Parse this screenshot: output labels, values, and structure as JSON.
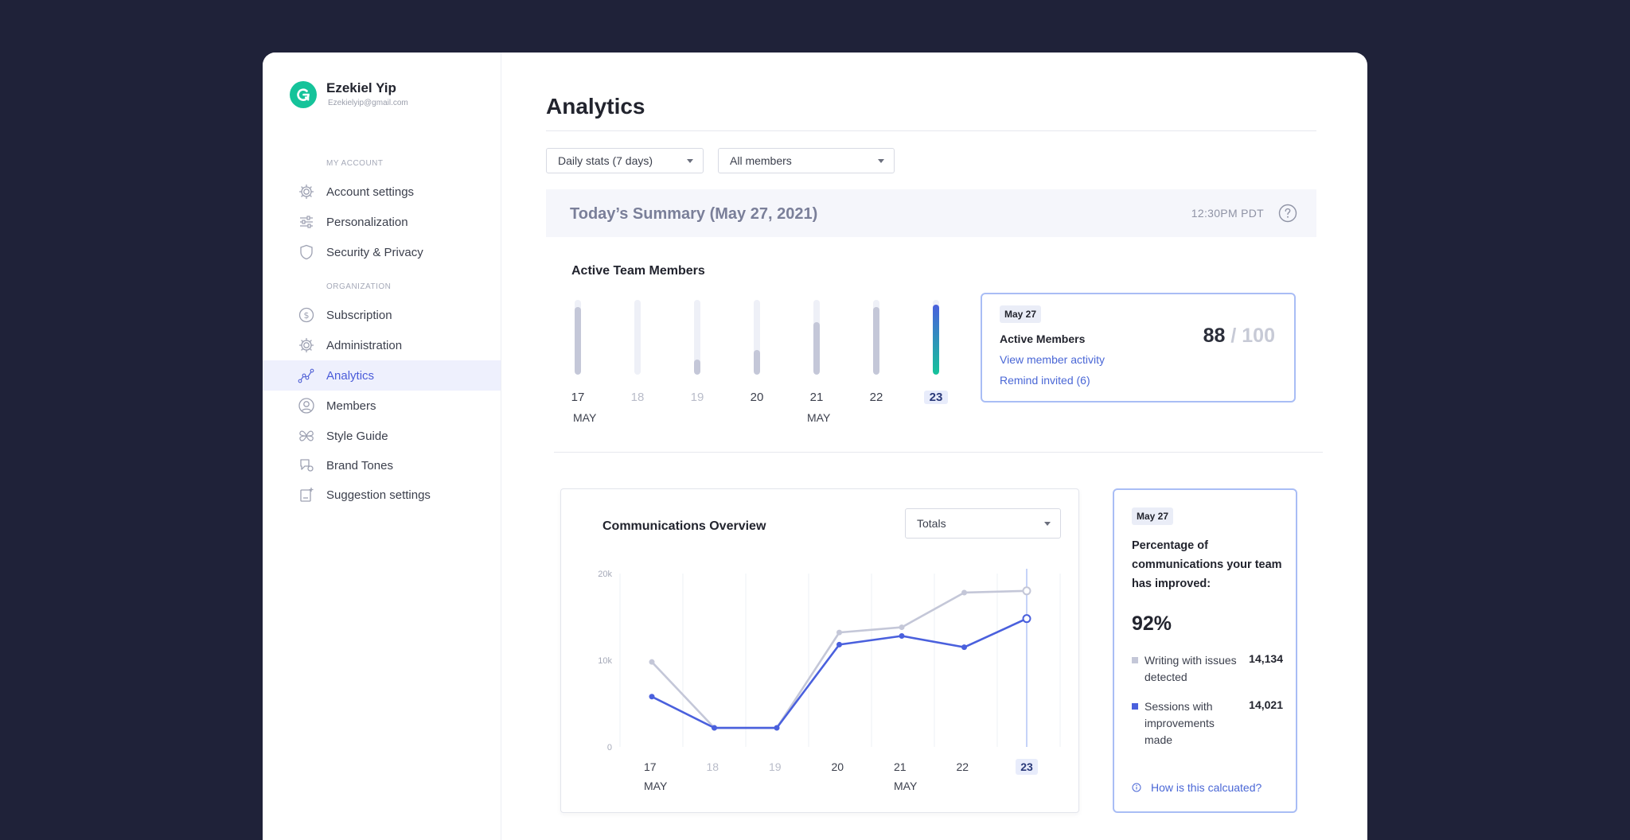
{
  "profile": {
    "name": "Ezekiel Yip",
    "email": "Ezekielyip@gmail.com"
  },
  "sidebar": {
    "section_account": "MY ACCOUNT",
    "section_org": "ORGANIZATION",
    "items": [
      {
        "label": "Account settings",
        "icon": "gear-icon"
      },
      {
        "label": "Personalization",
        "icon": "sliders-icon"
      },
      {
        "label": "Security & Privacy",
        "icon": "shield-icon"
      },
      {
        "label": "Subscription",
        "icon": "dollar-icon"
      },
      {
        "label": "Administration",
        "icon": "gear-icon"
      },
      {
        "label": "Analytics",
        "icon": "analytics-icon",
        "active": true
      },
      {
        "label": "Members",
        "icon": "user-icon"
      },
      {
        "label": "Style Guide",
        "icon": "style-guide-icon"
      },
      {
        "label": "Brand Tones",
        "icon": "brand-tones-icon"
      },
      {
        "label": "Suggestion settings",
        "icon": "suggestion-icon"
      }
    ]
  },
  "main": {
    "title": "Analytics",
    "filter_period": "Daily stats (7 days)",
    "filter_members": "All members",
    "summary_title": "Today’s Summary (May 27, 2021)",
    "summary_time": "12:30PM PDT",
    "active_members": {
      "title": "Active Team Members",
      "days": [
        "17",
        "18",
        "19",
        "20",
        "21",
        "22",
        "23"
      ],
      "levels": [
        0.9,
        0.0,
        0.2,
        0.33,
        0.7,
        0.9,
        0.94
      ],
      "month_label_1": "MAY",
      "month_label_2": "MAY"
    },
    "member_card": {
      "date_badge": "May 27",
      "title": "Active Members",
      "link_activity": "View member activity",
      "link_remind": "Remind invited (6)",
      "count": "88",
      "total": " / 100"
    },
    "comm": {
      "title": "Communications Overview",
      "select_value": "Totals",
      "month_label_1": "MAY",
      "month_label_2": "MAY"
    },
    "pct_card": {
      "date_badge": "May 27",
      "description": "Percentage of communications your team has improved:",
      "value": "92%",
      "legend_1_label": "Writing with issues detected",
      "legend_1_value": "14,134",
      "legend_2_label": "Sessions with improvements made",
      "legend_2_value": "14,021",
      "how_link": "How is this calcuated?"
    }
  },
  "colors": {
    "accent": "#4a5bd9",
    "brand_green": "#15c39a",
    "series_issues": "#c4c7d8",
    "series_improved": "#4a60dd",
    "background": "#1f2239"
  },
  "chart_data": {
    "type": "line",
    "categories": [
      "17",
      "18",
      "19",
      "20",
      "21",
      "22",
      "23"
    ],
    "yticks": [
      "0",
      "10k",
      "20k"
    ],
    "ylim": [
      0,
      20000
    ],
    "series": [
      {
        "name": "Writing with issues detected",
        "values": [
          9800,
          2200,
          2200,
          13200,
          13800,
          17800,
          18000
        ]
      },
      {
        "name": "Sessions with improvements made",
        "values": [
          5800,
          2200,
          2200,
          11800,
          12800,
          11500,
          14800
        ]
      }
    ]
  }
}
